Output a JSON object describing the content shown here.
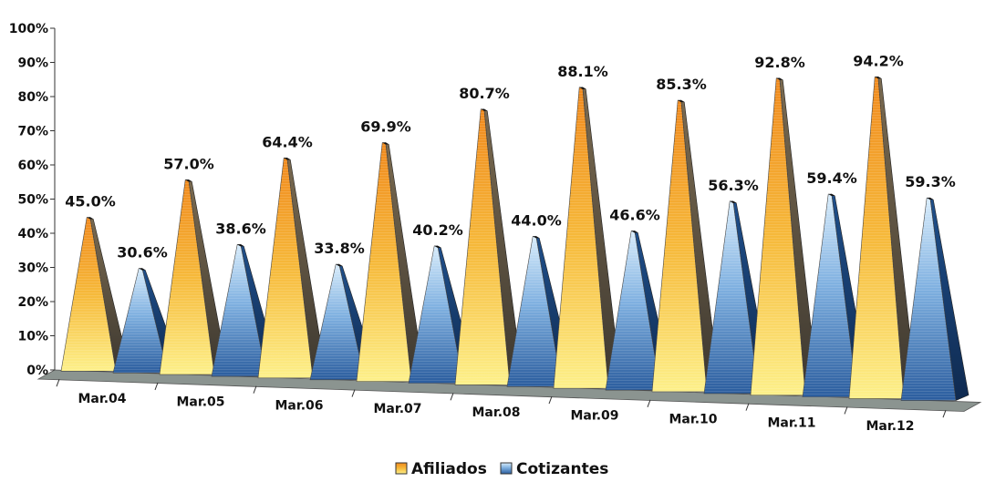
{
  "chart_data": {
    "type": "bar",
    "style": "3d-pyramid",
    "categories": [
      "Mar.04",
      "Mar.05",
      "Mar.06",
      "Mar.07",
      "Mar.08",
      "Mar.09",
      "Mar.10",
      "Mar.11",
      "Mar.12"
    ],
    "series": [
      {
        "name": "Afiliados",
        "color": "#f2b233",
        "values": [
          45.0,
          57.0,
          64.4,
          69.9,
          80.7,
          88.1,
          85.3,
          92.8,
          94.2
        ]
      },
      {
        "name": "Cotizantes",
        "color": "#2f63a8",
        "values": [
          30.6,
          38.6,
          33.8,
          40.2,
          44.0,
          46.6,
          56.3,
          59.4,
          59.3
        ]
      }
    ],
    "data_labels": [
      [
        "45.0%",
        "57.0%",
        "64.4%",
        "69.9%",
        "80.7%",
        "88.1%",
        "85.3%",
        "92.8%",
        "94.2%"
      ],
      [
        "30.6%",
        "38.6%",
        "33.8%",
        "40.2%",
        "44.0%",
        "46.6%",
        "56.3%",
        "59.4%",
        "59.3%"
      ]
    ],
    "y_ticks": [
      "0%",
      "10%",
      "20%",
      "30%",
      "40%",
      "50%",
      "60%",
      "70%",
      "80%",
      "90%",
      "100%"
    ],
    "ylim": [
      0,
      100
    ],
    "legend_position": "bottom",
    "floor_color": "#8b9490",
    "title": "",
    "xlabel": "",
    "ylabel": ""
  }
}
